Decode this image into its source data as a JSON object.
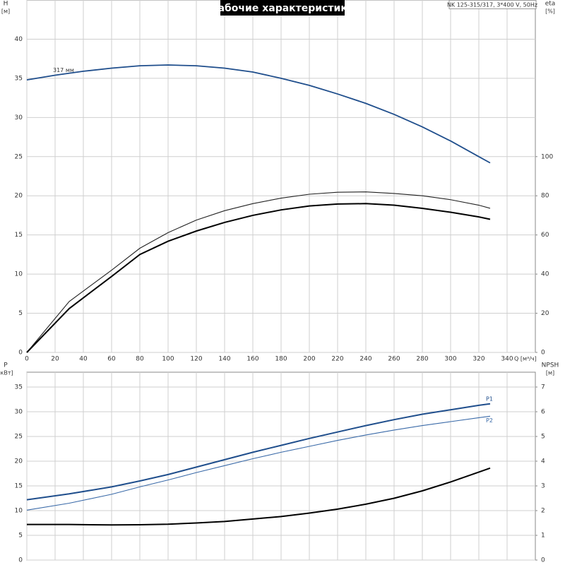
{
  "chart_data": [
    {
      "type": "line",
      "title": "Рабочие характеристики",
      "subtitle": "NK 125-315/317, 3*400 V, 50Hz",
      "xlabel": "Q [м³/ч]",
      "ylabel": "H",
      "yunit": "[м]",
      "y2label": "eta",
      "y2unit": "[%]",
      "xlim": [
        0,
        360
      ],
      "xticks": [
        0,
        20,
        40,
        60,
        80,
        100,
        120,
        140,
        160,
        180,
        200,
        220,
        240,
        260,
        280,
        300,
        320,
        340
      ],
      "ylim": [
        0,
        45
      ],
      "yticks": [
        0,
        5,
        10,
        15,
        20,
        25,
        30,
        35,
        40
      ],
      "y2lim": [
        0,
        180
      ],
      "y2ticks": [
        0,
        20,
        40,
        60,
        80,
        100
      ],
      "grid": true,
      "series": [
        {
          "name": "317 мм",
          "color": "#1f4e8c",
          "line_width": 1.8,
          "x": [
            0,
            20,
            40,
            60,
            80,
            100,
            120,
            140,
            160,
            180,
            200,
            220,
            240,
            260,
            280,
            300,
            320,
            328
          ],
          "values": [
            34.8,
            35.4,
            35.9,
            36.3,
            36.6,
            36.7,
            36.6,
            36.3,
            35.8,
            35.0,
            34.1,
            33.0,
            31.8,
            30.4,
            28.8,
            27.0,
            25.0,
            24.2
          ]
        },
        {
          "color": "#222222",
          "line_width": 1.1,
          "axis": "y2",
          "x": [
            0,
            30,
            60,
            80,
            100,
            120,
            140,
            160,
            180,
            200,
            220,
            240,
            260,
            280,
            300,
            320,
            328
          ],
          "values": [
            0,
            26,
            42,
            53.2,
            61.2,
            67.6,
            72.4,
            76,
            78.8,
            80.8,
            81.8,
            82,
            81.2,
            80,
            78,
            75.2,
            73.6
          ]
        },
        {
          "color": "#000000",
          "line_width": 2,
          "axis": "y2",
          "x": [
            0,
            30,
            60,
            80,
            100,
            120,
            140,
            160,
            180,
            200,
            220,
            240,
            260,
            280,
            300,
            320,
            328
          ],
          "values": [
            0,
            22.4,
            38.8,
            50,
            56.8,
            62,
            66.4,
            70,
            72.8,
            74.8,
            75.8,
            76,
            75.2,
            73.6,
            71.6,
            69.2,
            68
          ]
        }
      ]
    },
    {
      "type": "line",
      "ylabel": "P",
      "yunit": "[кВт]",
      "y2label": "NPSH",
      "y2unit": "[м]",
      "xlim": [
        0,
        360
      ],
      "xticks": [
        0,
        20,
        40,
        60,
        80,
        100,
        120,
        140,
        160,
        180,
        200,
        220,
        240,
        260,
        280,
        300,
        320,
        340
      ],
      "xtick_labels": false,
      "ylim": [
        0,
        38
      ],
      "yticks": [
        0,
        5,
        10,
        15,
        20,
        25,
        30,
        35
      ],
      "y2lim": [
        0,
        7.6
      ],
      "y2ticks": [
        0,
        1,
        2,
        3,
        4,
        5,
        6,
        7
      ],
      "grid": true,
      "series": [
        {
          "name": "P1",
          "color": "#1f4e8c",
          "line_width": 2,
          "x": [
            0,
            30,
            60,
            80,
            100,
            120,
            140,
            160,
            180,
            200,
            220,
            240,
            260,
            280,
            300,
            320,
            328
          ],
          "values": [
            12.2,
            13.4,
            14.8,
            16.0,
            17.3,
            18.8,
            20.3,
            21.8,
            23.2,
            24.6,
            25.9,
            27.2,
            28.4,
            29.5,
            30.4,
            31.3,
            31.6
          ]
        },
        {
          "name": "P2",
          "color": "#3a6aa8",
          "line_width": 1.1,
          "x": [
            0,
            30,
            60,
            80,
            100,
            120,
            140,
            160,
            180,
            200,
            220,
            240,
            260,
            280,
            300,
            320,
            328
          ],
          "values": [
            10.1,
            11.5,
            13.3,
            14.8,
            16.2,
            17.7,
            19.1,
            20.5,
            21.8,
            23.0,
            24.2,
            25.3,
            26.3,
            27.2,
            28.0,
            28.8,
            29.1
          ]
        },
        {
          "color": "#000000",
          "line_width": 2,
          "axis": "y2",
          "x": [
            0,
            30,
            60,
            80,
            100,
            120,
            140,
            160,
            180,
            200,
            220,
            240,
            260,
            280,
            300,
            320,
            328
          ],
          "values": [
            1.44,
            1.44,
            1.42,
            1.43,
            1.45,
            1.5,
            1.56,
            1.66,
            1.76,
            1.9,
            2.06,
            2.26,
            2.5,
            2.8,
            3.16,
            3.56,
            3.72
          ]
        }
      ]
    }
  ]
}
